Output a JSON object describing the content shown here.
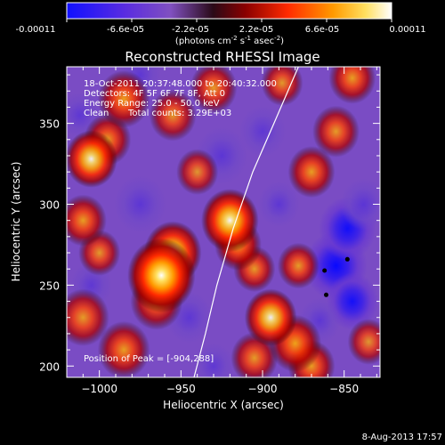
{
  "colorbar": {
    "tick_labels": [
      "-0.00011",
      "-6.6e-05",
      "-2.2e-05",
      "2.2e-05",
      "6.6e-05",
      "0.00011"
    ],
    "unit_label": "(photons cm",
    "unit_sup1": "-2",
    "unit_mid": " s",
    "unit_sup2": "-1",
    "unit_mid2": " asec",
    "unit_sup3": "-2",
    "unit_end": ")",
    "range": [
      -0.00011,
      0.00011
    ],
    "colors": [
      "#1010ff",
      "#6a2fd6",
      "#8a5cc8",
      "#2a0a10",
      "#b00000",
      "#ff3000",
      "#ff9a00",
      "#ffe060",
      "#ffffff"
    ]
  },
  "chart_data": {
    "type": "heatmap",
    "title": "Reconstructed RHESSI Image",
    "xlabel": "Heliocentric X (arcsec)",
    "ylabel": "Heliocentric Y (arcsec)",
    "xlim": [
      -1020,
      -828
    ],
    "ylim": [
      193,
      385
    ],
    "x_ticks": [
      -1000,
      -950,
      -900,
      -850
    ],
    "x_tick_labels": [
      "−1000",
      "−950",
      "−900",
      "−850"
    ],
    "y_ticks": [
      200,
      250,
      300,
      350
    ],
    "y_tick_labels": [
      "200",
      "250",
      "300",
      "350"
    ],
    "grid": false,
    "limb_curve": [
      [
        -942,
        193
      ],
      [
        -935,
        220
      ],
      [
        -928,
        250
      ],
      [
        -918,
        285
      ],
      [
        -906,
        320
      ],
      [
        -893,
        350
      ],
      [
        -878,
        385
      ]
    ],
    "peak": [
      -904,
      288
    ],
    "contour_markers": [
      [
        -848,
        266
      ],
      [
        -861,
        244
      ],
      [
        -862,
        259
      ]
    ],
    "blobs": [
      {
        "x": -962,
        "y": 256,
        "v": 1.0,
        "s": 13
      },
      {
        "x": -955,
        "y": 270,
        "v": 0.8,
        "s": 11
      },
      {
        "x": -965,
        "y": 240,
        "v": 0.6,
        "s": 10
      },
      {
        "x": -920,
        "y": 290,
        "v": 0.85,
        "s": 11
      },
      {
        "x": -915,
        "y": 275,
        "v": 0.7,
        "s": 9
      },
      {
        "x": -905,
        "y": 260,
        "v": 0.55,
        "s": 8
      },
      {
        "x": -1005,
        "y": 328,
        "v": 0.75,
        "s": 10
      },
      {
        "x": -995,
        "y": 340,
        "v": 0.6,
        "s": 9
      },
      {
        "x": -1010,
        "y": 290,
        "v": 0.6,
        "s": 9
      },
      {
        "x": -985,
        "y": 365,
        "v": 0.65,
        "s": 10
      },
      {
        "x": -955,
        "y": 355,
        "v": 0.5,
        "s": 9
      },
      {
        "x": -930,
        "y": 372,
        "v": 0.55,
        "s": 9
      },
      {
        "x": -1010,
        "y": 230,
        "v": 0.55,
        "s": 10
      },
      {
        "x": -985,
        "y": 210,
        "v": 0.6,
        "s": 10
      },
      {
        "x": -1000,
        "y": 270,
        "v": 0.5,
        "s": 8
      },
      {
        "x": -895,
        "y": 230,
        "v": 0.75,
        "s": 10
      },
      {
        "x": -880,
        "y": 214,
        "v": 0.7,
        "s": 10
      },
      {
        "x": -905,
        "y": 205,
        "v": 0.55,
        "s": 9
      },
      {
        "x": -870,
        "y": 200,
        "v": 0.6,
        "s": 9
      },
      {
        "x": -878,
        "y": 262,
        "v": 0.55,
        "s": 8
      },
      {
        "x": -870,
        "y": 320,
        "v": 0.6,
        "s": 9
      },
      {
        "x": -855,
        "y": 345,
        "v": 0.55,
        "s": 9
      },
      {
        "x": -845,
        "y": 378,
        "v": 0.6,
        "s": 9
      },
      {
        "x": -888,
        "y": 375,
        "v": 0.5,
        "s": 8
      },
      {
        "x": -940,
        "y": 320,
        "v": 0.45,
        "s": 8
      },
      {
        "x": -835,
        "y": 215,
        "v": 0.45,
        "s": 8
      },
      {
        "x": -975,
        "y": 300,
        "v": -0.55,
        "s": 10
      },
      {
        "x": -945,
        "y": 230,
        "v": -0.5,
        "s": 9
      },
      {
        "x": -925,
        "y": 330,
        "v": -0.6,
        "s": 10
      },
      {
        "x": -1012,
        "y": 355,
        "v": -0.45,
        "s": 8
      },
      {
        "x": -900,
        "y": 345,
        "v": -0.45,
        "s": 9
      },
      {
        "x": -975,
        "y": 380,
        "v": -0.45,
        "s": 8
      },
      {
        "x": -890,
        "y": 300,
        "v": -0.5,
        "s": 8
      },
      {
        "x": -1005,
        "y": 250,
        "v": -0.4,
        "s": 8
      },
      {
        "x": -930,
        "y": 200,
        "v": -0.4,
        "s": 8
      },
      {
        "x": -855,
        "y": 262,
        "v": -1.0,
        "s": 12
      },
      {
        "x": -848,
        "y": 285,
        "v": -0.8,
        "s": 11
      },
      {
        "x": -845,
        "y": 240,
        "v": -0.75,
        "s": 10
      },
      {
        "x": -838,
        "y": 300,
        "v": -0.6,
        "s": 9
      },
      {
        "x": -865,
        "y": 228,
        "v": -0.5,
        "s": 8
      }
    ]
  },
  "annotations": {
    "time_range": "18-Oct-2011 20:37:48.000 to 20:40:32.000",
    "detectors": "Detectors: 4F 5F 6F 7F 8F, Att 0",
    "energy_range": "Energy Range: 25.0 - 50.0 keV",
    "clean_label": "Clean",
    "total_counts": "Total counts: 3.29E+03",
    "peak_position": "Position of Peak = [-904,288]"
  },
  "footer": {
    "date": "8-Aug-2013 17:57"
  }
}
